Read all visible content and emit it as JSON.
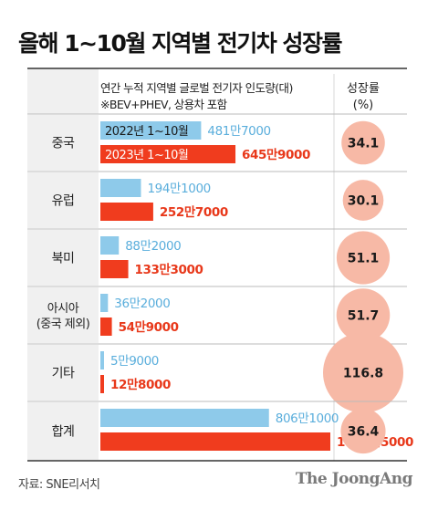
{
  "title": "올해 1~10월 지역별 전기차 성장률",
  "header": {
    "col1_line1": "연간 누적 지역별 글로벌 전기자 인도량(대)",
    "col1_line2": "※BEV+PHEV, 상용차 포함",
    "col2_line1": "성장률",
    "col2_line2": "(%)"
  },
  "chart_data": {
    "type": "bar",
    "orientation": "horizontal",
    "categories": [
      [
        "중국"
      ],
      [
        "유럽"
      ],
      [
        "북미"
      ],
      [
        "아시아",
        "(중국 제외)"
      ],
      [
        "기타"
      ],
      [
        "합계"
      ]
    ],
    "series": [
      {
        "name": "2022년 1~10월",
        "color": "#8ecaea",
        "values": [
          4817000,
          1941000,
          882000,
          362000,
          59000,
          8061000
        ],
        "labels": [
          "481만7000",
          "194만1000",
          "88만2000",
          "36만2000",
          "5만9000",
          "806만1000"
        ]
      },
      {
        "name": "2023년 1~10월",
        "color": "#f03c1e",
        "values": [
          6459000,
          2527000,
          1333000,
          549000,
          128000,
          10995000
        ],
        "labels": [
          "645만9000",
          "252만7000",
          "133만3000",
          "54만9000",
          "12만8000",
          "1099만5000"
        ]
      }
    ],
    "growth_rates": [
      34.1,
      30.1,
      51.1,
      51.7,
      116.8,
      36.4
    ],
    "growth_labels": [
      "34.1",
      "30.1",
      "51.1",
      "51.7",
      "116.8",
      "36.4"
    ]
  },
  "footer": {
    "source": "자료: SNE리서치",
    "brand": "The JoongAng"
  },
  "colors": {
    "label_bg": "#f0f0f0",
    "header_bg": "#f0f0f0",
    "bubble": "#f7b9a6",
    "label_2022": "#5aaedc",
    "label_2023": "#e8381a"
  }
}
